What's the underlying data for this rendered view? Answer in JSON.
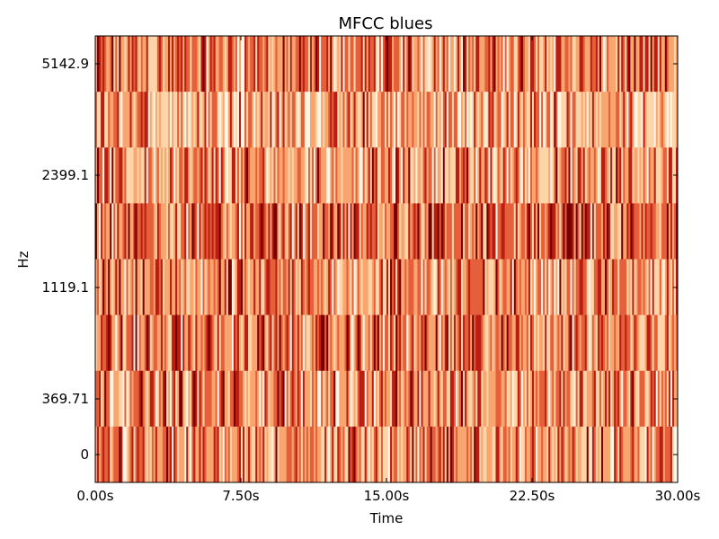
{
  "chart_data": {
    "type": "heatmap",
    "title": "MFCC blues",
    "xlabel": "Time",
    "ylabel": "Hz",
    "x_ticks": [
      "0.00s",
      "7.50s",
      "15.00s",
      "22.50s",
      "30.00s"
    ],
    "y_ticks": [
      "0",
      "369.71",
      "1119.1",
      "2399.1",
      "5142.9"
    ],
    "xlim": [
      0,
      30
    ],
    "n_rows": 8,
    "n_frames": 320,
    "colormap": [
      "#fff5e6",
      "#fdd5a8",
      "#f8a570",
      "#e5603a",
      "#b81f12",
      "#7a0000"
    ],
    "grid": false
  }
}
